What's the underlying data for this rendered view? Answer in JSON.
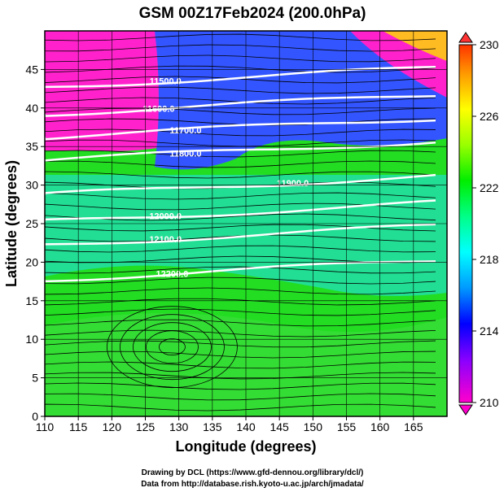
{
  "chart_data": {
    "type": "heatmap",
    "title": "GSM 00Z17Feb2024 (200.0hPa)",
    "xlabel": "Longitude (degrees)",
    "ylabel": "Latitude  (degrees)",
    "xlim": [
      110,
      170
    ],
    "ylim": [
      0,
      50
    ],
    "xticks": [
      "110",
      "115",
      "120",
      "125",
      "130",
      "135",
      "140",
      "145",
      "150",
      "155",
      "160",
      "165"
    ],
    "yticks": [
      "0",
      "5",
      "10",
      "15",
      "20",
      "25",
      "30",
      "35",
      "40",
      "45"
    ],
    "colorbar": {
      "min": 210,
      "max": 230,
      "ticks": [
        "210",
        "214",
        "218",
        "222",
        "226",
        "230"
      ],
      "colors": [
        "#ff00cc",
        "#8800ff",
        "#0000ff",
        "#0099ff",
        "#00ffff",
        "#00ff88",
        "#00ee00",
        "#99ff00",
        "#ffff00",
        "#ff9900",
        "#ff3300"
      ]
    },
    "contours": [
      {
        "label": "11500.0",
        "lat": 44,
        "lon_label": 128
      },
      {
        "label": "11600.0",
        "lat": 40.5,
        "lon_label": 127
      },
      {
        "label": "11700.0",
        "lat": 37.5,
        "lon_label": 131
      },
      {
        "label": "11800.0",
        "lat": 34.5,
        "lon_label": 131
      },
      {
        "label": "11900.0",
        "lat": 30,
        "lon_label": 147
      },
      {
        "label": "12000.0",
        "lat": 26.5,
        "lon_label": 128
      },
      {
        "label": "12100.0",
        "lat": 23.5,
        "lon_label": 128
      },
      {
        "label": "12200.0",
        "lat": 19,
        "lon_label": 129
      }
    ],
    "grid": true
  },
  "footer": {
    "line1": "Drawing by DCL (https://www.gfd-dennou.org/library/dcl/)",
    "line2": "Data from http://database.rish.kyoto-u.ac.jp/arch/jmadata/"
  }
}
